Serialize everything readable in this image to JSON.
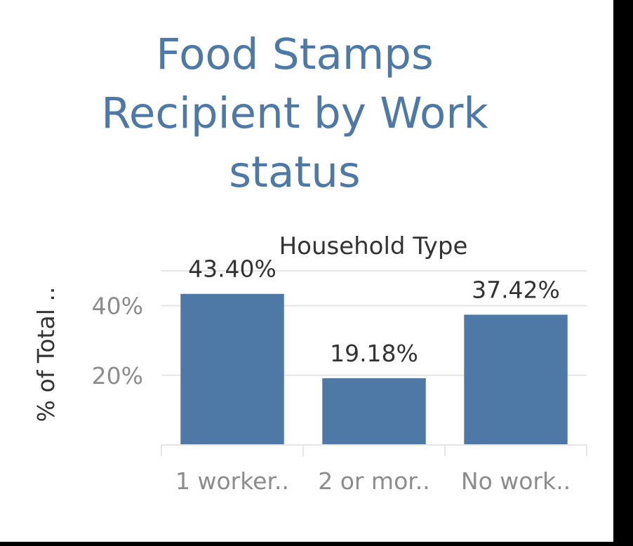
{
  "title_lines": [
    "Food Stamps",
    "Recipient by Work",
    "status"
  ],
  "chart_data": {
    "type": "bar",
    "title": "Food Stamps Recipient by Work status",
    "header": "Household Type",
    "xlabel": "",
    "ylabel": "% of Total ..",
    "categories": [
      "1 worker..",
      "2 or mor..",
      "No work.."
    ],
    "values": [
      43.4,
      19.18,
      37.42
    ],
    "value_labels": [
      "43.40%",
      "19.18%",
      "37.42%"
    ],
    "ylim": [
      0,
      50
    ],
    "yticks": [
      20,
      40
    ],
    "ytick_labels": [
      "20%",
      "40%"
    ],
    "grid": true,
    "bar_color": "#4e79a7"
  },
  "colors": {
    "title": "#4e79a7",
    "bar": "#4e79a7",
    "grid": "#e6e6e6",
    "tick_text": "#8c8c8c",
    "label_text": "#333333"
  }
}
